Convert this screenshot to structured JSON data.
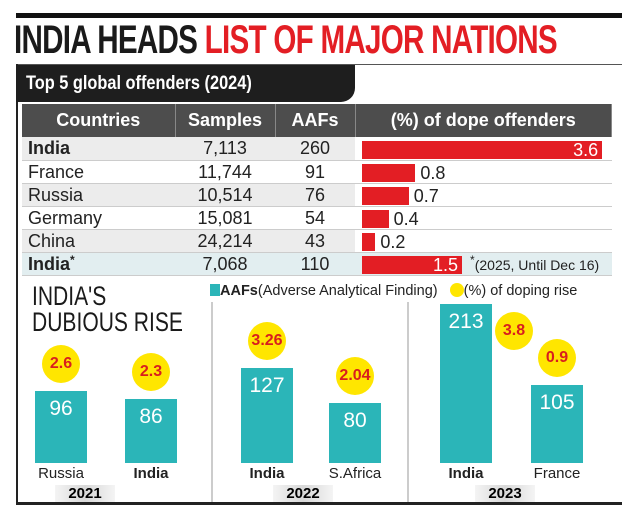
{
  "title": {
    "part1": "INDIA HEADS",
    "part2": "LIST OF MAJOR NATIONS"
  },
  "colors": {
    "title_red": "#e31e24",
    "bar_red": "#e31e24",
    "teal": "#2bb5b8",
    "yellow": "#ffe600",
    "header_gray": "#4d4d4d"
  },
  "chart_data": [
    {
      "type": "table",
      "title": "Top 5 global offenders (2024)",
      "columns": [
        "Countries",
        "Samples",
        "AAFs",
        "(%) of dope offenders"
      ],
      "rows": [
        {
          "country": "India",
          "samples": "7,113",
          "aafs": "260",
          "pct": 3.6,
          "pct_label": "3.6",
          "bold": true
        },
        {
          "country": "France",
          "samples": "11,744",
          "aafs": "91",
          "pct": 0.8,
          "pct_label": "0.8"
        },
        {
          "country": "Russia",
          "samples": "10,514",
          "aafs": "76",
          "pct": 0.7,
          "pct_label": "0.7"
        },
        {
          "country": "Germany",
          "samples": "15,081",
          "aafs": "54",
          "pct": 0.4,
          "pct_label": "0.4"
        },
        {
          "country": "China",
          "samples": "24,214",
          "aafs": "43",
          "pct": 0.2,
          "pct_label": "0.2"
        },
        {
          "country": "India",
          "marker": "*",
          "samples": "7,068",
          "aafs": "110",
          "pct": 1.5,
          "pct_label": "1.5",
          "bold": true,
          "note_marker": "*",
          "note": "(2025, Until Dec 16)"
        }
      ]
    },
    {
      "type": "bar",
      "title": "INDIA'S DUBIOUS RISE",
      "legend": {
        "bars": "AAFs",
        "bars_desc": "(Adverse Analytical Finding)",
        "circles": "(%) of doping rise"
      },
      "groups": [
        {
          "year": "2021",
          "bars": [
            {
              "country": "Russia",
              "aafs": 96,
              "aafs_label": "96",
              "rise": "2.6"
            },
            {
              "country": "India",
              "aafs": 86,
              "aafs_label": "86",
              "rise": "2.3",
              "bold": true
            }
          ]
        },
        {
          "year": "2022",
          "bars": [
            {
              "country": "India",
              "aafs": 127,
              "aafs_label": "127",
              "rise": "3.26",
              "bold": true
            },
            {
              "country": "S.Africa",
              "aafs": 80,
              "aafs_label": "80",
              "rise": "2.04"
            }
          ]
        },
        {
          "year": "2023",
          "bars": [
            {
              "country": "India",
              "aafs": 213,
              "aafs_label": "213",
              "rise": "3.8",
              "bold": true
            },
            {
              "country": "France",
              "aafs": 105,
              "aafs_label": "105",
              "rise": "0.9"
            }
          ]
        }
      ]
    }
  ]
}
